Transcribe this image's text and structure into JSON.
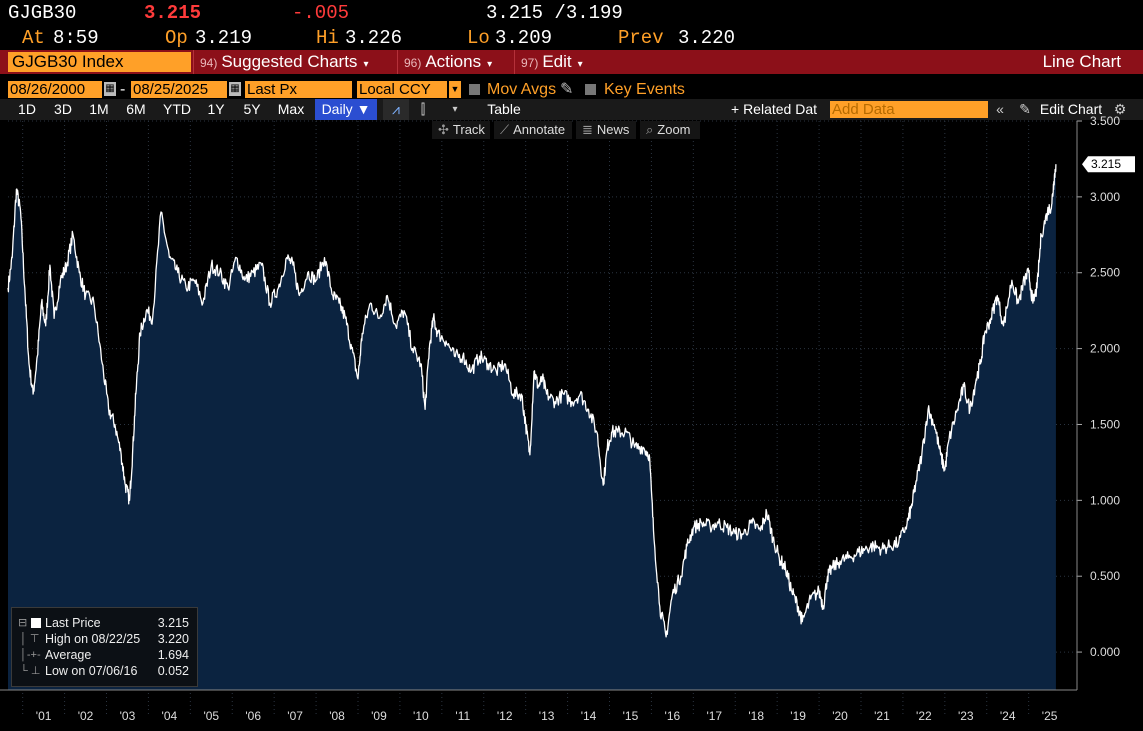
{
  "quote": {
    "ticker": "GJGB30",
    "last": "3.215",
    "change": "-.005",
    "bid_ask": "3.215 /3.199",
    "at_label": "At",
    "time": "8:59",
    "open_label": "Op",
    "open": "3.219",
    "high_label": "Hi",
    "high": "3.226",
    "low_label": "Lo",
    "low": "3.209",
    "prev_label": "Prev",
    "prev": "3.220"
  },
  "menubar": {
    "security": "GJGB30 Index",
    "items": [
      {
        "num": "94)",
        "label": "Suggested Charts"
      },
      {
        "num": "96)",
        "label": "Actions"
      },
      {
        "num": "97)",
        "label": "Edit"
      }
    ],
    "chart_type": "Line Chart"
  },
  "params": {
    "start_date": "08/26/2000",
    "end_date": "08/25/2025",
    "field": "Last Px",
    "currency": "Local CCY",
    "mov_avgs": "Mov Avgs",
    "key_events": "Key Events"
  },
  "toolbar": {
    "ranges": [
      "1D",
      "3D",
      "1M",
      "6M",
      "YTD",
      "1Y",
      "5Y",
      "Max"
    ],
    "frequency": "Daily ▼",
    "table": "Table",
    "related": "+ Related Dat",
    "add_data_placeholder": "Add Data",
    "edit_chart": "Edit Chart",
    "tools": [
      "Track",
      "Annotate",
      "News",
      "Zoom"
    ]
  },
  "legend": {
    "rows": [
      {
        "label": "Last Price",
        "value": "3.215"
      },
      {
        "label": "High on 08/22/25",
        "value": "3.220"
      },
      {
        "label": "Average",
        "value": "1.694"
      },
      {
        "label": "Low on 07/06/16",
        "value": "0.052"
      }
    ]
  },
  "colors": {
    "orange": "#ffa028",
    "red_bar": "#8c1019",
    "area_fill": "#0b2340",
    "line": "#ffffff",
    "negative": "#ff3b3b"
  },
  "chart_data": {
    "type": "area",
    "title": "",
    "x_ticks": [
      "'01",
      "'02",
      "'03",
      "'04",
      "'05",
      "'06",
      "'07",
      "'08",
      "'09",
      "'10",
      "'11",
      "'12",
      "'13",
      "'14",
      "'15",
      "'16",
      "'17",
      "'18",
      "'19",
      "'20",
      "'21",
      "'22",
      "'23",
      "'24",
      "'25"
    ],
    "y_ticks": [
      "3.500",
      "3.000",
      "2.500",
      "2.000",
      "1.500",
      "1.000",
      "0.500",
      "0.000"
    ],
    "ylim": [
      -0.25,
      3.5
    ],
    "xlim": [
      2000.65,
      2025.7
    ],
    "last_value_label": "3.215",
    "grid": true,
    "x": [
      2000.65,
      2000.75,
      2000.85,
      2000.95,
      2001.05,
      2001.15,
      2001.25,
      2001.35,
      2001.45,
      2001.55,
      2001.65,
      2001.75,
      2001.9,
      2002.05,
      2002.2,
      2002.35,
      2002.5,
      2002.7,
      2002.9,
      2003.05,
      2003.2,
      2003.35,
      2003.45,
      2003.55,
      2003.62,
      2003.7,
      2003.8,
      2003.95,
      2004.1,
      2004.3,
      2004.5,
      2004.7,
      2004.9,
      2005.1,
      2005.3,
      2005.5,
      2005.7,
      2005.9,
      2006.1,
      2006.3,
      2006.5,
      2006.7,
      2006.9,
      2007.1,
      2007.3,
      2007.45,
      2007.6,
      2007.8,
      2008.0,
      2008.2,
      2008.4,
      2008.55,
      2008.7,
      2008.85,
      2009.0,
      2009.1,
      2009.3,
      2009.5,
      2009.7,
      2009.9,
      2010.1,
      2010.3,
      2010.5,
      2010.6,
      2010.7,
      2010.8,
      2010.9,
      2011.1,
      2011.3,
      2011.5,
      2011.7,
      2011.9,
      2012.1,
      2012.3,
      2012.5,
      2012.7,
      2012.9,
      2013.0,
      2013.1,
      2013.2,
      2013.3,
      2013.4,
      2013.5,
      2013.7,
      2013.9,
      2014.1,
      2014.3,
      2014.5,
      2014.7,
      2014.85,
      2014.95,
      2015.05,
      2015.2,
      2015.4,
      2015.6,
      2015.8,
      2015.95,
      2016.05,
      2016.2,
      2016.35,
      2016.5,
      2016.7,
      2016.85,
      2017.0,
      2017.2,
      2017.4,
      2017.6,
      2017.8,
      2018.0,
      2018.2,
      2018.4,
      2018.6,
      2018.75,
      2018.9,
      2019.05,
      2019.2,
      2019.35,
      2019.5,
      2019.6,
      2019.8,
      2020.0,
      2020.1,
      2020.2,
      2020.3,
      2020.5,
      2020.7,
      2020.9,
      2021.1,
      2021.3,
      2021.5,
      2021.7,
      2021.9,
      2022.1,
      2022.2,
      2022.3,
      2022.45,
      2022.6,
      2022.75,
      2022.9,
      2023.0,
      2023.1,
      2023.3,
      2023.45,
      2023.6,
      2023.75,
      2023.85,
      2023.95,
      2024.1,
      2024.25,
      2024.4,
      2024.6,
      2024.75,
      2024.9,
      2025.0,
      2025.1,
      2025.2,
      2025.3,
      2025.45,
      2025.55,
      2025.6,
      2025.65
    ],
    "y": [
      2.4,
      2.6,
      3.05,
      2.9,
      2.4,
      1.9,
      1.7,
      1.95,
      2.3,
      2.15,
      2.55,
      2.2,
      2.45,
      2.55,
      2.75,
      2.5,
      2.35,
      2.3,
      1.9,
      1.6,
      1.5,
      1.3,
      1.1,
      1.0,
      1.3,
      1.7,
      2.1,
      2.25,
      2.2,
      2.9,
      2.6,
      2.5,
      2.4,
      2.45,
      2.3,
      2.55,
      2.5,
      2.4,
      2.6,
      2.45,
      2.5,
      2.55,
      2.3,
      2.4,
      2.6,
      2.55,
      2.35,
      2.5,
      2.45,
      2.6,
      2.35,
      2.3,
      2.2,
      2.0,
      1.8,
      2.1,
      2.3,
      2.2,
      2.35,
      2.15,
      2.25,
      2.0,
      1.9,
      1.6,
      2.0,
      2.2,
      2.1,
      2.05,
      1.95,
      1.95,
      1.85,
      1.95,
      1.9,
      1.85,
      1.9,
      1.7,
      1.7,
      1.5,
      1.3,
      1.85,
      1.75,
      1.8,
      1.7,
      1.65,
      1.7,
      1.65,
      1.7,
      1.6,
      1.45,
      1.1,
      1.35,
      1.45,
      1.45,
      1.45,
      1.35,
      1.35,
      1.3,
      0.8,
      0.3,
      0.1,
      0.38,
      0.5,
      0.7,
      0.82,
      0.85,
      0.83,
      0.85,
      0.82,
      0.78,
      0.78,
      0.85,
      0.8,
      0.92,
      0.75,
      0.62,
      0.55,
      0.4,
      0.3,
      0.2,
      0.35,
      0.4,
      0.3,
      0.5,
      0.55,
      0.6,
      0.62,
      0.65,
      0.68,
      0.7,
      0.68,
      0.7,
      0.72,
      0.85,
      0.95,
      1.1,
      1.3,
      1.6,
      1.5,
      1.3,
      1.2,
      1.4,
      1.6,
      1.75,
      1.6,
      1.8,
      1.9,
      2.1,
      2.2,
      2.35,
      2.15,
      2.45,
      2.3,
      2.45,
      2.5,
      2.3,
      2.4,
      2.75,
      2.9,
      2.95,
      3.1,
      3.215
    ]
  }
}
